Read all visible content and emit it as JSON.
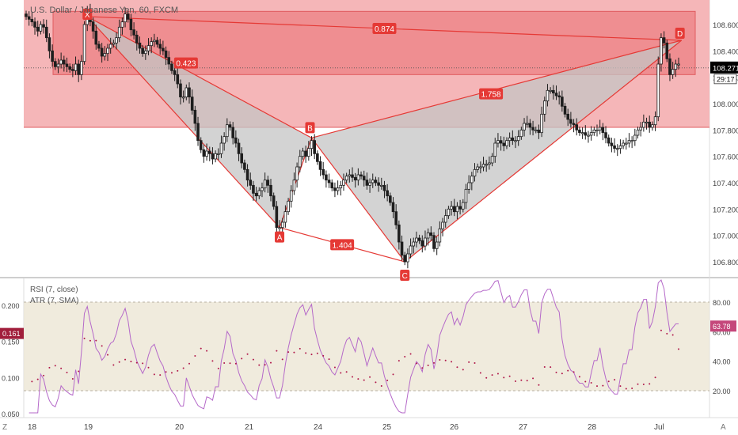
{
  "header": {
    "symbol_title": "U.S. Dollar / Japanese Yen, 60, FXCM"
  },
  "colors": {
    "zone_fill": "#f3a9ab",
    "zone_border": "#e05c60",
    "harmonic_fill": "#c4c4c4",
    "harmonic_line": "#e53935",
    "candle_body": "#1e1e1e",
    "rsi_line": "#b569c9",
    "atr_dots": "#b0184a",
    "rsi_band": "#ece6d4",
    "price_tag": "#000000",
    "rsi_tag": "#c5477b",
    "atr_tag": "#a11e3b"
  },
  "pattern": {
    "points": {
      "X": "X",
      "A": "A",
      "B": "B",
      "C": "C",
      "D": "D"
    },
    "ratios": {
      "xa_b": "0.423",
      "ab_c": "1.404",
      "bc_d": "1.758",
      "xa_d": "0.874"
    }
  },
  "price_axis": {
    "ticks": [
      "108.600",
      "108.400",
      "108.200",
      "108.000",
      "107.800",
      "107.600",
      "107.400",
      "107.200",
      "107.000",
      "106.800"
    ],
    "current_price": "108.271",
    "countdown": "29:17"
  },
  "indicator": {
    "rsi_label": "RSI (7, close)",
    "atr_label": "ATR (7, SMA)",
    "left_ticks": [
      "0.200",
      "0.150",
      "0.100",
      "0.050"
    ],
    "right_ticks": [
      "80.00",
      "60.00",
      "40.00",
      "20.00"
    ],
    "atr_value": "0.161",
    "rsi_value": "63.78"
  },
  "time_axis": {
    "labels": [
      "18",
      "19",
      "20",
      "21",
      "24",
      "25",
      "26",
      "27",
      "28",
      "Jul"
    ]
  },
  "corner": {
    "left": "Z",
    "right": "A"
  },
  "chart_data": {
    "type": "candlestick",
    "title": "U.S. Dollar / Japanese Yen, 60, FXCM",
    "ylim": [
      106.72,
      108.76
    ],
    "close": [
      108.66,
      108.64,
      108.62,
      108.58,
      108.55,
      108.6,
      108.58,
      108.5,
      108.4,
      108.32,
      108.28,
      108.3,
      108.33,
      108.3,
      108.28,
      108.26,
      108.25,
      108.3,
      108.22,
      108.32,
      108.6,
      108.7,
      108.62,
      108.55,
      108.45,
      108.42,
      108.36,
      108.38,
      108.42,
      108.45,
      108.46,
      108.5,
      108.58,
      108.62,
      108.68,
      108.64,
      108.56,
      108.52,
      108.46,
      108.42,
      108.38,
      108.4,
      108.44,
      108.47,
      108.48,
      108.45,
      108.42,
      108.4,
      108.35,
      108.3,
      108.25,
      108.22,
      108.15,
      108.05,
      108.05,
      108.12,
      108.05,
      107.95,
      107.85,
      107.72,
      107.65,
      107.6,
      107.64,
      107.62,
      107.58,
      107.62,
      107.62,
      107.7,
      107.75,
      107.84,
      107.82,
      107.74,
      107.7,
      107.62,
      107.55,
      107.5,
      107.42,
      107.38,
      107.32,
      107.3,
      107.34,
      107.36,
      107.42,
      107.38,
      107.3,
      107.22,
      107.06,
      107.06,
      107.1,
      107.18,
      107.26,
      107.34,
      107.42,
      107.52,
      107.6,
      107.64,
      107.6,
      107.66,
      107.72,
      107.62,
      107.56,
      107.5,
      107.46,
      107.42,
      107.4,
      107.36,
      107.34,
      107.36,
      107.38,
      107.42,
      107.45,
      107.46,
      107.44,
      107.42,
      107.46,
      107.45,
      107.42,
      107.38,
      107.4,
      107.42,
      107.4,
      107.38,
      107.38,
      107.34,
      107.3,
      107.25,
      107.18,
      107.08,
      106.95,
      106.85,
      106.8,
      106.86,
      106.92,
      106.95,
      106.98,
      106.96,
      106.92,
      106.98,
      107.02,
      107.0,
      106.9,
      106.95,
      107.05,
      107.1,
      107.15,
      107.2,
      107.22,
      107.18,
      107.22,
      107.2,
      107.25,
      107.35,
      107.4,
      107.45,
      107.5,
      107.52,
      107.52,
      107.54,
      107.54,
      107.55,
      107.6,
      107.7,
      107.72,
      107.7,
      107.68,
      107.72,
      107.74,
      107.72,
      107.72,
      107.75,
      107.8,
      107.85,
      107.85,
      107.82,
      107.8,
      107.8,
      107.78,
      107.92,
      108.02,
      108.1,
      108.1,
      108.08,
      108.06,
      108.05,
      107.98,
      107.92,
      107.88,
      107.85,
      107.84,
      107.8,
      107.78,
      107.78,
      107.76,
      107.76,
      107.78,
      107.8,
      107.8,
      107.82,
      107.78,
      107.74,
      107.7,
      107.68,
      107.66,
      107.66,
      107.68,
      107.7,
      107.7,
      107.72,
      107.72,
      107.76,
      107.8,
      107.82,
      107.86,
      107.86,
      107.82,
      107.84,
      107.9,
      108.3,
      108.5,
      108.46,
      108.34,
      108.22,
      108.26,
      108.3,
      108.3
    ],
    "pattern_levels": {
      "X": 108.66,
      "A": 107.06,
      "B": 107.74,
      "C": 106.8,
      "D": 108.48
    },
    "ratios": {
      "xa_b": 0.423,
      "ab_c": 1.404,
      "bc_d": 1.758,
      "xa_d": 0.874
    },
    "zone": {
      "top": 108.7,
      "bottom": 107.82
    },
    "rsi": {
      "ylim": [
        0,
        100
      ],
      "band": [
        20,
        80
      ],
      "last": 63.78
    },
    "atr": {
      "ylim": [
        0.04,
        0.23
      ],
      "last": 0.161
    }
  }
}
